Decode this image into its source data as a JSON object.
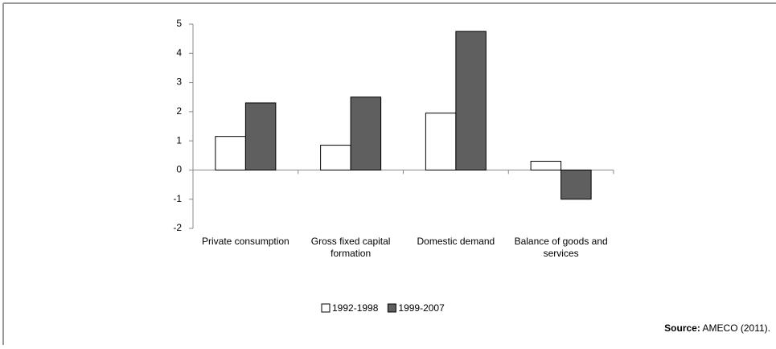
{
  "chart_data": {
    "type": "bar",
    "categories": [
      "Private consumption",
      "Gross fixed capital formation",
      "Domestic demand",
      "Balance of goods and services"
    ],
    "series": [
      {
        "name": "1992-1998",
        "color": "#ffffff",
        "values": [
          1.15,
          0.85,
          1.95,
          0.3
        ]
      },
      {
        "name": "1999-2007",
        "color": "#5f5f5f",
        "values": [
          2.3,
          2.5,
          4.75,
          -1.0
        ]
      }
    ],
    "ylim": [
      -2,
      5
    ],
    "yticks": [
      -2,
      -1,
      0,
      1,
      2,
      3,
      4,
      5
    ],
    "grid": false,
    "legend": "bottom",
    "source_label": "Source:",
    "source_text": "AMECO (2011)."
  }
}
